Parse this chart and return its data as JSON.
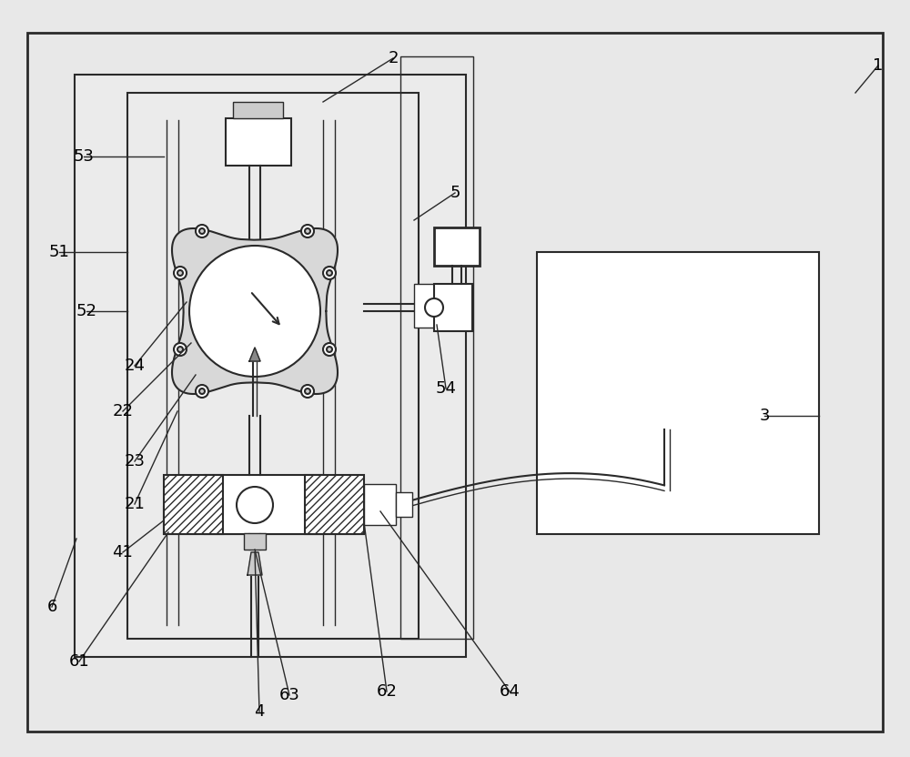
{
  "bg_color": "#e8e8e8",
  "line_color": "#2a2a2a",
  "fill_white": "#ffffff",
  "fill_light": "#f0f0f0",
  "fill_gray": "#cccccc",
  "fill_dark": "#888888",
  "lw_main": 1.5,
  "lw_thin": 1.0,
  "lw_thick": 2.0,
  "label_fs": 13,
  "fig_w": 10.0,
  "fig_h": 8.32,
  "dpi": 100
}
